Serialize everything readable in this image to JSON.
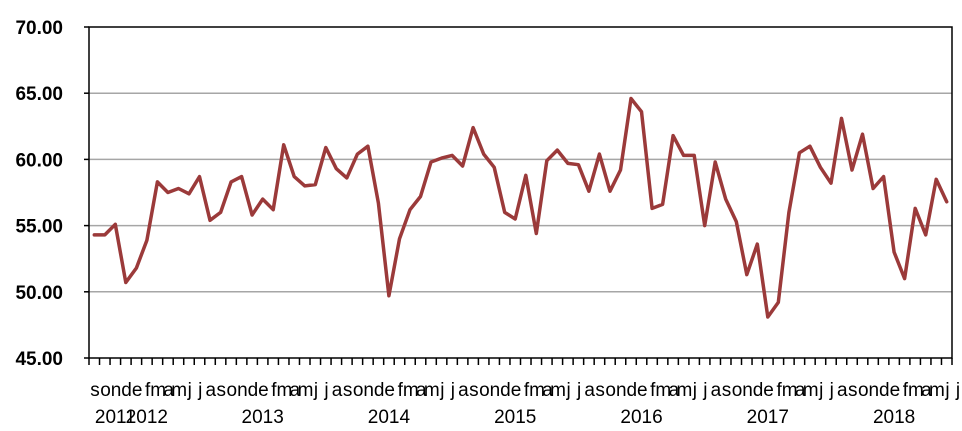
{
  "chart_data": {
    "type": "line",
    "title": "",
    "xlabel": "",
    "ylabel": "",
    "ylim": [
      45,
      70
    ],
    "yticks": [
      "45.00",
      "50.00",
      "55.00",
      "60.00",
      "65.00",
      "70.00"
    ],
    "grid": "horizontal",
    "legend": "none",
    "colors": {
      "line": "#9b3a3a",
      "grid": "#a6a6a6",
      "axis": "#000000"
    },
    "month_labels": [
      "s",
      "o",
      "n",
      "d",
      "e",
      "f",
      "m",
      "a",
      "m",
      "j",
      "j",
      "a",
      "s",
      "o",
      "n",
      "d",
      "e",
      "f",
      "m",
      "a",
      "m",
      "j",
      "j",
      "a",
      "s",
      "o",
      "n",
      "d",
      "e",
      "f",
      "m",
      "a",
      "m",
      "j",
      "j",
      "a",
      "s",
      "o",
      "n",
      "d",
      "e",
      "f",
      "m",
      "a",
      "m",
      "j",
      "j",
      "a",
      "s",
      "o",
      "n",
      "d",
      "e",
      "f",
      "m",
      "a",
      "m",
      "j",
      "j",
      "a",
      "s",
      "o",
      "n",
      "d",
      "e",
      "f",
      "m",
      "a",
      "m",
      "j",
      "j",
      "a",
      "s",
      "o",
      "n",
      "d",
      "e",
      "f",
      "m",
      "a",
      "m",
      "j",
      "j",
      "a",
      "s",
      "o",
      "n",
      "d",
      "e",
      "f",
      "m",
      "a",
      "m",
      "j"
    ],
    "year_labels": [
      {
        "label": "2011",
        "index": 2
      },
      {
        "label": "2012",
        "index": 5
      },
      {
        "label": "2013",
        "index": 16
      },
      {
        "label": "2014",
        "index": 28
      },
      {
        "label": "2015",
        "index": 40
      },
      {
        "label": "2016",
        "index": 52
      },
      {
        "label": "2017",
        "index": 64
      },
      {
        "label": "2018",
        "index": 76
      }
    ],
    "series": [
      {
        "values": [
          54.3,
          54.3,
          55.1,
          50.7,
          51.8,
          53.9,
          58.3,
          57.5,
          57.8,
          57.4,
          58.7,
          55.4,
          56.0,
          58.3,
          58.7,
          55.8,
          57.0,
          56.2,
          61.1,
          58.7,
          58.0,
          58.1,
          60.9,
          59.3,
          58.6,
          60.4,
          61.0,
          56.7,
          49.7,
          54.0,
          56.2,
          57.2,
          59.8,
          60.1,
          60.3,
          59.5,
          62.4,
          60.4,
          59.4,
          56.0,
          55.5,
          58.8,
          54.4,
          59.9,
          60.7,
          59.7,
          59.6,
          57.6,
          60.4,
          57.6,
          59.2,
          64.6,
          63.6,
          56.3,
          56.6,
          61.8,
          60.3,
          60.3,
          55.0,
          59.8,
          57.0,
          55.3,
          51.3,
          53.6,
          48.1,
          49.2,
          56.0,
          60.5,
          61.0,
          59.4,
          58.2,
          63.1,
          59.2,
          61.9,
          57.8,
          58.7,
          53.0,
          51.0,
          56.3,
          54.3,
          58.5,
          56.8
        ]
      }
    ]
  }
}
